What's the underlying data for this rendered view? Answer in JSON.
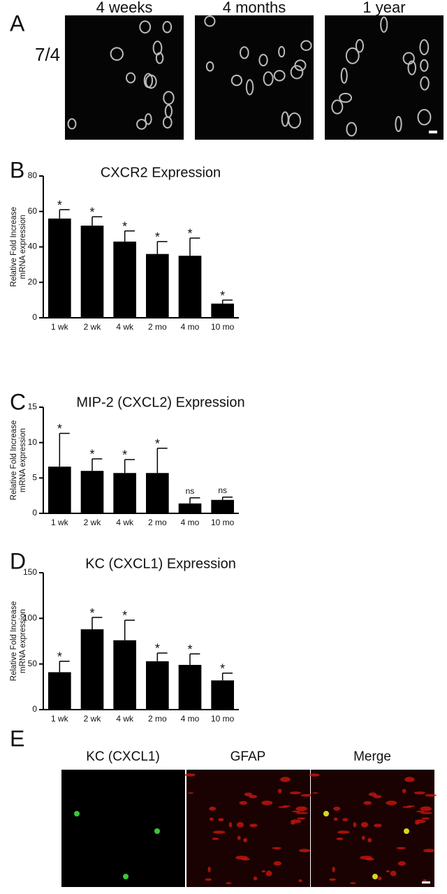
{
  "panel_a": {
    "label": "A",
    "row_label": "7/4",
    "columns": [
      "4 weeks",
      "4 months",
      "1 year"
    ]
  },
  "panel_e": {
    "label": "E",
    "columns": [
      "KC (CXCL1)",
      "GFAP",
      "Merge"
    ]
  },
  "chart_data": [
    {
      "type": "bar",
      "label": "B",
      "title": "CXCR2 Expression",
      "ylabel": [
        "Relative Fold Increase",
        "mRNA expression"
      ],
      "categories": [
        "1 wk",
        "2 wk",
        "4 wk",
        "2 mo",
        "4 mo",
        "10 mo"
      ],
      "values": [
        56,
        52,
        43,
        36,
        35,
        8
      ],
      "errors": [
        5,
        5,
        6,
        7,
        10,
        2
      ],
      "annotations": [
        "*",
        "*",
        "*",
        "*",
        "*",
        "*"
      ],
      "color": "#000000",
      "ylim": [
        0,
        80
      ],
      "yticks": [
        0,
        20,
        40,
        60,
        80
      ]
    },
    {
      "type": "bar",
      "label": "C",
      "title": "MIP-2 (CXCL2) Expression",
      "ylabel": [
        "Relative Fold Increase",
        "mRNA expression"
      ],
      "categories": [
        "1 wk",
        "2 wk",
        "4 wk",
        "2 mo",
        "4 mo",
        "10 mo"
      ],
      "values": [
        6.6,
        6.0,
        5.7,
        5.7,
        1.4,
        1.9
      ],
      "errors": [
        4.7,
        1.7,
        1.9,
        3.5,
        0.8,
        0.4
      ],
      "annotations": [
        "*",
        "*",
        "*",
        "*",
        "ns",
        "ns"
      ],
      "color": "#000000",
      "ylim": [
        0,
        15
      ],
      "yticks": [
        0,
        5,
        10,
        15
      ]
    },
    {
      "type": "bar",
      "label": "D",
      "title": "KC (CXCL1) Expression",
      "ylabel": [
        "Relative Fold Increase",
        "mRNA expression"
      ],
      "categories": [
        "1 wk",
        "2 wk",
        "4 wk",
        "2 mo",
        "4 mo",
        "10 mo"
      ],
      "values": [
        41,
        88,
        76,
        53,
        49,
        32
      ],
      "errors": [
        12,
        13,
        22,
        9,
        12,
        8
      ],
      "annotations": [
        "*",
        "*",
        "*",
        "*",
        "*",
        "*"
      ],
      "color": "#000000",
      "ylim": [
        0,
        150
      ],
      "yticks": [
        0,
        50,
        100,
        150
      ]
    }
  ]
}
